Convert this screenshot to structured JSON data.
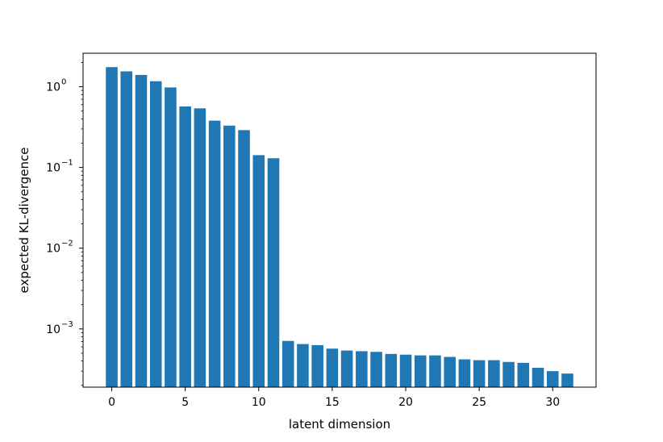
{
  "chart_data": {
    "type": "bar",
    "title": "",
    "xlabel": "latent dimension",
    "ylabel": "expected KL-divergence",
    "yscale": "log",
    "ylim": [
      0.00019,
      2.6
    ],
    "xlim": [
      -1.95,
      32.95
    ],
    "x_ticks": [
      0,
      5,
      10,
      15,
      20,
      25,
      30
    ],
    "y_ticks": [
      {
        "value": 1,
        "base": "10",
        "exp": "0"
      },
      {
        "value": 0.1,
        "base": "10",
        "exp": "−1"
      },
      {
        "value": 0.01,
        "base": "10",
        "exp": "−2"
      },
      {
        "value": 0.001,
        "base": "10",
        "exp": "−3"
      }
    ],
    "color": "#1f77b4",
    "categories": [
      0,
      1,
      2,
      3,
      4,
      5,
      6,
      7,
      8,
      9,
      10,
      11,
      12,
      13,
      14,
      15,
      16,
      17,
      18,
      19,
      20,
      21,
      22,
      23,
      24,
      25,
      26,
      27,
      28,
      29,
      30,
      31
    ],
    "values": [
      1.75,
      1.55,
      1.4,
      1.17,
      0.98,
      0.57,
      0.54,
      0.38,
      0.33,
      0.29,
      0.142,
      0.13,
      0.00071,
      0.00065,
      0.00063,
      0.00057,
      0.00054,
      0.00053,
      0.00052,
      0.00049,
      0.00048,
      0.00047,
      0.00047,
      0.00045,
      0.00042,
      0.00041,
      0.00041,
      0.00039,
      0.00038,
      0.00033,
      0.0003,
      0.00028
    ],
    "grid": false,
    "legend": "none"
  }
}
